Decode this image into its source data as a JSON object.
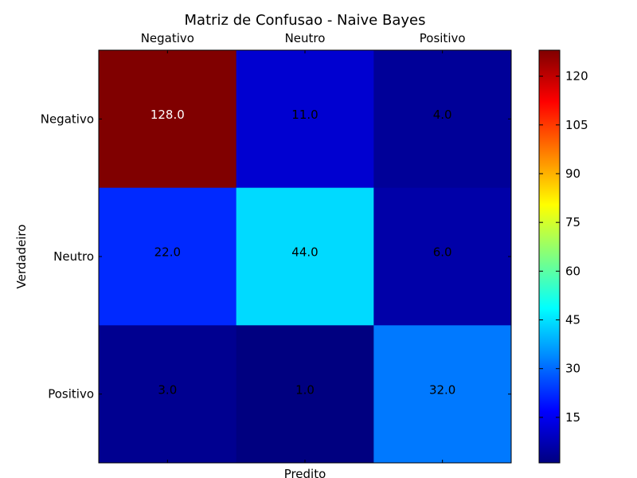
{
  "chart_data": {
    "type": "heatmap",
    "title": "Matriz de Confusao - Naive Bayes",
    "xlabel": "Predito",
    "ylabel": "Verdadeiro",
    "x_categories": [
      "Negativo",
      "Neutro",
      "Positivo"
    ],
    "y_categories": [
      "Negativo",
      "Neutro",
      "Positivo"
    ],
    "values": [
      [
        128.0,
        11.0,
        4.0
      ],
      [
        22.0,
        44.0,
        6.0
      ],
      [
        3.0,
        1.0,
        32.0
      ]
    ],
    "value_labels": [
      [
        "128.0",
        "11.0",
        "4.0"
      ],
      [
        "22.0",
        "44.0",
        "6.0"
      ],
      [
        "3.0",
        "1.0",
        "32.0"
      ]
    ],
    "colormap": "jet",
    "color_range": [
      1,
      128
    ],
    "colorbar_ticks": [
      15,
      30,
      45,
      60,
      75,
      90,
      105,
      120
    ],
    "label_color_dark_background": "#ffffff",
    "label_color_light_background": "#000000",
    "x_axis_position": "top",
    "grid": false
  }
}
